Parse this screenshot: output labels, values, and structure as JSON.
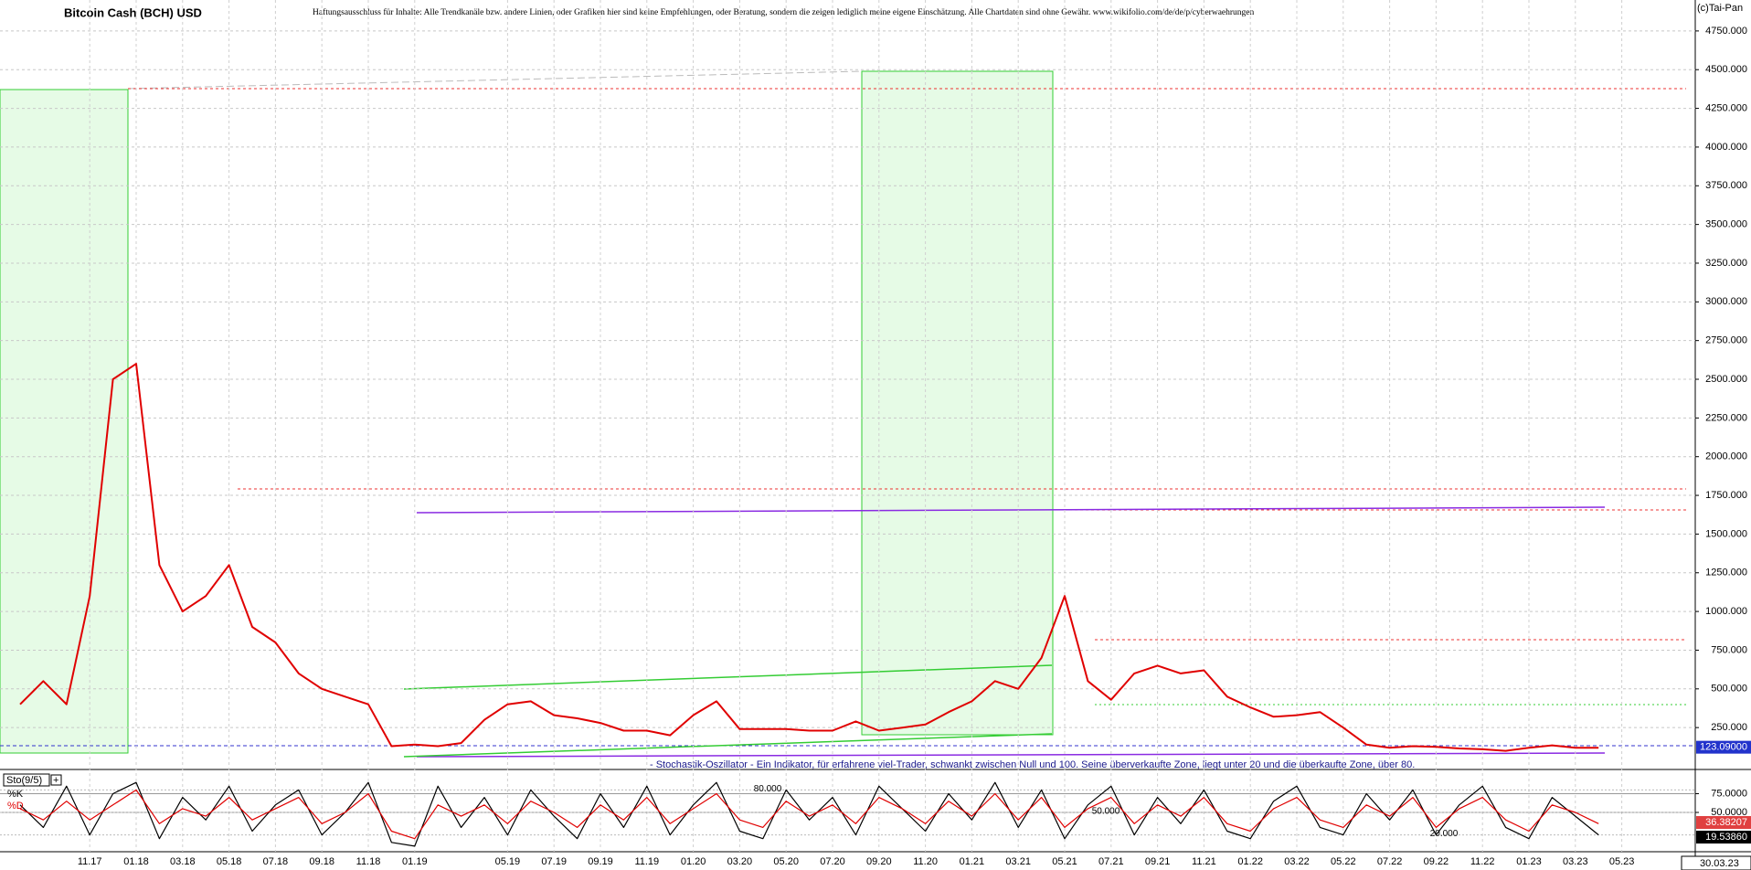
{
  "chart_data": [
    {
      "type": "line",
      "title": "Bitcoin Cash (BCH) USD",
      "subtitle": "Haftungsausschluss für Inhalte: Alle Trendkanäle bzw. andere Linien, oder Grafiken hier sind keine Empfehlungen, oder Beratung, sondern die zeigen lediglich meine eigene Einschätzung. Alle Chartdaten sind ohne Gewähr. www.wikifolio.com/de/de/p/cyberwaehrungen",
      "source": "(c)Tai-Pan",
      "categories": [
        null,
        null,
        null,
        "11.17",
        null,
        "01.18",
        null,
        "03.18",
        null,
        "05.18",
        null,
        "07.18",
        null,
        "09.18",
        null,
        "11.18",
        null,
        "01.19",
        null,
        null,
        null,
        "05.19",
        null,
        "07.19",
        null,
        "09.19",
        null,
        "11.19",
        null,
        "01.20",
        null,
        "03.20",
        null,
        "05.20",
        null,
        "07.20",
        null,
        "09.20",
        null,
        "11.20",
        null,
        "01.21",
        null,
        "03.21",
        null,
        "05.21",
        null,
        "07.21",
        null,
        "09.21",
        null,
        "11.21",
        null,
        "01.22",
        null,
        "03.22",
        null,
        "05.22",
        null,
        "07.22",
        null,
        "09.22",
        null,
        "11.22",
        null,
        "01.23",
        null,
        "03.23",
        null,
        "05.23"
      ],
      "values": [
        400,
        550,
        400,
        1100,
        2500,
        2600,
        1300,
        1000,
        1100,
        1300,
        900,
        800,
        600,
        500,
        450,
        400,
        130,
        140,
        130,
        150,
        300,
        400,
        420,
        330,
        310,
        280,
        230,
        230,
        200,
        330,
        420,
        240,
        240,
        240,
        230,
        230,
        290,
        230,
        250,
        270,
        350,
        420,
        550,
        500,
        700,
        1100,
        550,
        430,
        600,
        650,
        600,
        620,
        450,
        380,
        320,
        330,
        350,
        250,
        140,
        120,
        130,
        125,
        115,
        110,
        100,
        120,
        135,
        120,
        120,
        null
      ],
      "color": "#e00000",
      "last_value": 123.09,
      "last_value_label": "123.09000",
      "last_date": "30.03.23",
      "ylim": [
        0,
        4950
      ],
      "yticks": [
        {
          "value": 250,
          "label": "250.000"
        },
        {
          "value": 500,
          "label": "500.000"
        },
        {
          "value": 750,
          "label": "750.000"
        },
        {
          "value": 1000,
          "label": "1000.000"
        },
        {
          "value": 1250,
          "label": "1250.000"
        },
        {
          "value": 1500,
          "label": "1500.000"
        },
        {
          "value": 1750,
          "label": "1750.000"
        },
        {
          "value": 2000,
          "label": "2000.000"
        },
        {
          "value": 2250,
          "label": "2250.000"
        },
        {
          "value": 2500,
          "label": "2500.000"
        },
        {
          "value": 2750,
          "label": "2750.000"
        },
        {
          "value": 3000,
          "label": "3000.000"
        },
        {
          "value": 3250,
          "label": "3250.000"
        },
        {
          "value": 3500,
          "label": "3500.000"
        },
        {
          "value": 3750,
          "label": "3750.000"
        },
        {
          "value": 4000,
          "label": "4000.000"
        },
        {
          "value": 4250,
          "label": "4250.000"
        },
        {
          "value": 4500,
          "label": "4500.000"
        },
        {
          "value": 4750,
          "label": "4750.000"
        }
      ],
      "grid": true
    },
    {
      "type": "line",
      "title": "Sto(9/5)",
      "description": "- Stochastik-Oszillator - Ein Indikator, für erfahrene viel-Trader, schwankt zwischen Null und 100. Seine überverkaufte Zone, liegt unter 20 und die überkaufte Zone, über 80.",
      "series": [
        {
          "name": "%K",
          "color": "#000000",
          "last_label": "19.53860",
          "values": [
            60,
            30,
            85,
            20,
            75,
            90,
            15,
            70,
            40,
            85,
            25,
            60,
            80,
            20,
            50,
            90,
            10,
            5,
            85,
            30,
            70,
            20,
            80,
            45,
            15,
            75,
            30,
            85,
            20,
            60,
            90,
            25,
            15,
            80,
            40,
            70,
            20,
            85,
            55,
            25,
            75,
            40,
            90,
            30,
            80,
            15,
            60,
            85,
            20,
            70,
            35,
            80,
            25,
            15,
            65,
            85,
            30,
            20,
            75,
            40,
            80,
            20,
            60,
            85,
            30,
            15,
            70,
            45,
            20,
            null
          ]
        },
        {
          "name": "%D",
          "color": "#e00000",
          "last_label": "36.38207",
          "values": [
            55,
            40,
            65,
            40,
            60,
            80,
            35,
            55,
            45,
            70,
            40,
            55,
            70,
            35,
            50,
            75,
            25,
            15,
            60,
            45,
            60,
            35,
            65,
            50,
            30,
            60,
            40,
            70,
            35,
            55,
            75,
            40,
            30,
            65,
            45,
            60,
            35,
            70,
            55,
            35,
            65,
            45,
            75,
            40,
            70,
            30,
            55,
            70,
            35,
            60,
            45,
            70,
            35,
            25,
            55,
            70,
            40,
            30,
            60,
            45,
            70,
            30,
            55,
            70,
            40,
            25,
            60,
            50,
            35,
            null
          ]
        }
      ],
      "levels": [
        {
          "value": 80,
          "label": "80.000"
        },
        {
          "value": 50,
          "label": "50.000"
        },
        {
          "value": 20,
          "label": "20.000"
        }
      ],
      "ylim": [
        0,
        100
      ],
      "yticks": [
        {
          "value": 75,
          "label": "75.0000"
        },
        {
          "value": 50,
          "label": "50.0000"
        }
      ]
    }
  ]
}
